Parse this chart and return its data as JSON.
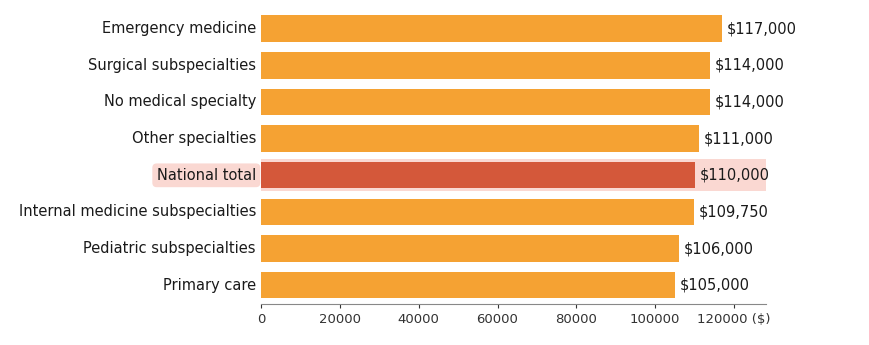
{
  "categories": [
    "Primary care",
    "Pediatric subspecialties",
    "Internal medicine subspecialties",
    "National total",
    "Other specialties",
    "No medical specialty",
    "Surgical subspecialties",
    "Emergency medicine"
  ],
  "values": [
    105000,
    106000,
    109750,
    110000,
    111000,
    114000,
    114000,
    117000
  ],
  "labels": [
    "$105,000",
    "$106,000",
    "$109,750",
    "$110,000",
    "$111,000",
    "$114,000",
    "$114,000",
    "$117,000"
  ],
  "bar_colors": [
    "#F5A233",
    "#F5A233",
    "#F5A233",
    "#D4583A",
    "#F5A233",
    "#F5A233",
    "#F5A233",
    "#F5A233"
  ],
  "highlight_index": 3,
  "highlight_label_bg": "#FAD8D2",
  "highlight_label_color": "#D4583A",
  "highlight_yaxis_bg": "#FAD8D2",
  "normal_label_color": "#1a1a1a",
  "xlim": [
    0,
    128000
  ],
  "xticks": [
    0,
    20000,
    40000,
    60000,
    80000,
    100000,
    120000
  ],
  "xtick_labels": [
    "0",
    "20000",
    "40000",
    "60000",
    "80000",
    "100000",
    "120000 ($)"
  ],
  "background_color": "#ffffff",
  "bar_height": 0.72,
  "label_fontsize": 10.5,
  "tick_fontsize": 9.5,
  "yaxis_fontsize": 10.5
}
